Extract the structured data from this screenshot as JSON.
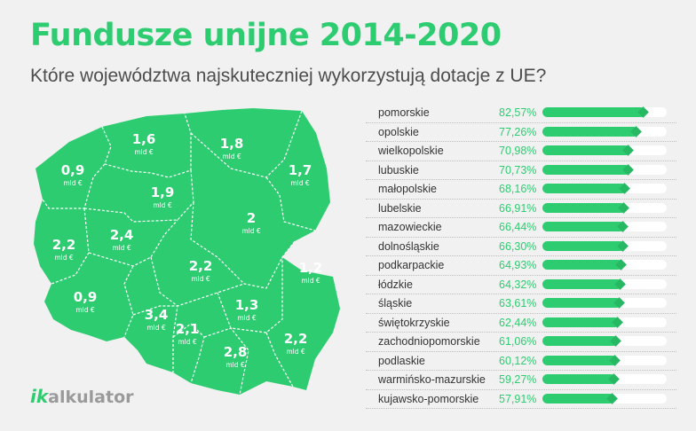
{
  "header": {
    "title": "Fundusze unijne 2014-2020",
    "subtitle": "Które województwa najskuteczniej wykorzystują dotacje z UE?"
  },
  "colors": {
    "accent": "#2ecc71",
    "accent_dark": "#27b863",
    "text": "#333333",
    "background": "#f1f1f1"
  },
  "map": {
    "unit": "mld €",
    "regions": [
      {
        "id": "pomorskie",
        "value": "1,6"
      },
      {
        "id": "warminsko-mazurskie",
        "value": "1,8"
      },
      {
        "id": "zachodniopomorskie",
        "value": "0,9"
      },
      {
        "id": "podlaskie",
        "value": "1,7"
      },
      {
        "id": "kujawsko-pomorskie",
        "value": "1,9"
      },
      {
        "id": "mazowieckie",
        "value": "2"
      },
      {
        "id": "lubuskie",
        "value": "2,2"
      },
      {
        "id": "wielkopolskie",
        "value": "2,4"
      },
      {
        "id": "lodzkie",
        "value": "2,2"
      },
      {
        "id": "lubelskie",
        "value": "1,2"
      },
      {
        "id": "dolnoslaskie",
        "value": "0,9"
      },
      {
        "id": "swietokrzyskie",
        "value": "1,3"
      },
      {
        "id": "slaskie",
        "value": "3,4"
      },
      {
        "id": "opolskie",
        "value": "2,1"
      },
      {
        "id": "malopolskie",
        "value": "2,8"
      },
      {
        "id": "podkarpackie",
        "value": "2,2"
      }
    ]
  },
  "chart_data": {
    "type": "bar",
    "categories": [
      "pomorskie",
      "opolskie",
      "wielkopolskie",
      "lubuskie",
      "małopolskie",
      "lubelskie",
      "mazowieckie",
      "dolnośląskie",
      "podkarpackie",
      "łódzkie",
      "śląskie",
      "świętokrzyskie",
      "zachodniopomorskie",
      "podlaskie",
      "warmińsko-mazurskie",
      "kujawsko-pomorskie"
    ],
    "values": [
      82.57,
      77.26,
      70.98,
      70.73,
      68.16,
      66.91,
      66.44,
      66.3,
      64.93,
      64.32,
      63.61,
      62.44,
      61.06,
      60.12,
      59.27,
      57.91
    ],
    "value_labels": [
      "82,57%",
      "77,26%",
      "70,98%",
      "70,73%",
      "68,16%",
      "66,91%",
      "66,44%",
      "66,30%",
      "64,93%",
      "64,32%",
      "63,61%",
      "62,44%",
      "61,06%",
      "60,12%",
      "59,27%",
      "57,91%"
    ],
    "orientation": "horizontal",
    "xlim": [
      0,
      100
    ]
  },
  "logo": {
    "ik": "ik",
    "rest": "alkulator"
  }
}
